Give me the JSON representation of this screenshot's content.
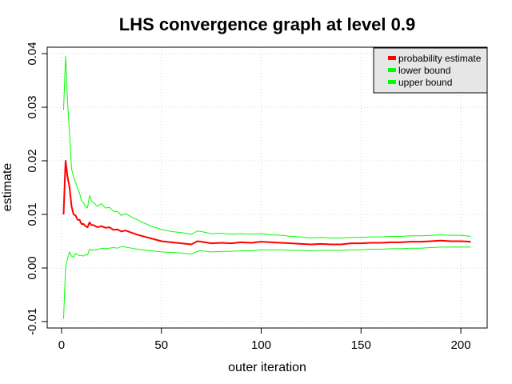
{
  "chart_data": {
    "type": "line",
    "title": "LHS convergence graph at level 0.9",
    "xlabel": "outer iteration",
    "ylabel": "estimate",
    "xlim": [
      -7.2,
      213.2
    ],
    "ylim": [
      -0.0112,
      0.0412
    ],
    "xticks": [
      0,
      50,
      100,
      150,
      200
    ],
    "yticks": [
      -0.01,
      0.0,
      0.01,
      0.02,
      0.03,
      0.04
    ],
    "xtick_labels": [
      "0",
      "50",
      "100",
      "150",
      "200"
    ],
    "ytick_labels": [
      "-0.01",
      "0.00",
      "0.01",
      "0.02",
      "0.03",
      "0.04"
    ],
    "grid": true,
    "legend_position": "top-right",
    "series": [
      {
        "name": "probability estimate",
        "color": "#ff0000",
        "x": [
          1,
          2,
          3,
          4,
          5,
          6,
          7,
          8,
          9,
          10,
          11,
          12,
          13,
          14,
          15,
          16,
          18,
          20,
          22,
          24,
          26,
          28,
          30,
          32,
          35,
          38,
          40,
          45,
          50,
          55,
          60,
          65,
          68,
          70,
          75,
          80,
          85,
          90,
          95,
          100,
          105,
          110,
          115,
          120,
          125,
          130,
          135,
          140,
          145,
          150,
          155,
          160,
          165,
          170,
          175,
          180,
          185,
          190,
          195,
          200,
          205
        ],
        "y": [
          0.01,
          0.02,
          0.017,
          0.015,
          0.0115,
          0.01,
          0.0098,
          0.009,
          0.009,
          0.0082,
          0.0082,
          0.0078,
          0.0076,
          0.0085,
          0.008,
          0.008,
          0.0076,
          0.0078,
          0.0075,
          0.0076,
          0.0071,
          0.0072,
          0.0068,
          0.007,
          0.0066,
          0.0062,
          0.006,
          0.0055,
          0.005,
          0.0048,
          0.0046,
          0.0044,
          0.005,
          0.0049,
          0.0046,
          0.0047,
          0.0046,
          0.0048,
          0.0047,
          0.0049,
          0.0048,
          0.0047,
          0.0046,
          0.0045,
          0.0044,
          0.0045,
          0.0044,
          0.0044,
          0.0046,
          0.0046,
          0.0047,
          0.0047,
          0.0048,
          0.0048,
          0.0049,
          0.0049,
          0.005,
          0.0051,
          0.005,
          0.005,
          0.0049
        ]
      },
      {
        "name": "lower bound",
        "color": "#00ff00",
        "x": [
          1,
          2,
          3,
          4,
          5,
          6,
          7,
          8,
          9,
          10,
          11,
          12,
          13,
          14,
          15,
          16,
          18,
          20,
          22,
          24,
          26,
          28,
          30,
          32,
          35,
          38,
          40,
          45,
          50,
          55,
          60,
          65,
          68,
          70,
          75,
          80,
          85,
          90,
          95,
          100,
          105,
          110,
          115,
          120,
          125,
          130,
          135,
          140,
          145,
          150,
          155,
          160,
          165,
          170,
          175,
          180,
          185,
          190,
          195,
          200,
          205
        ],
        "y": [
          -0.0095,
          0.0,
          0.0018,
          0.003,
          0.0022,
          0.002,
          0.0027,
          0.0025,
          0.0023,
          0.0024,
          0.0022,
          0.0025,
          0.0024,
          0.0035,
          0.0033,
          0.0034,
          0.0034,
          0.0037,
          0.0036,
          0.0037,
          0.0038,
          0.0037,
          0.004,
          0.0039,
          0.0037,
          0.0035,
          0.0034,
          0.0032,
          0.003,
          0.0029,
          0.0028,
          0.0026,
          0.0031,
          0.0032,
          0.003,
          0.0031,
          0.0031,
          0.0032,
          0.0032,
          0.0034,
          0.0034,
          0.0034,
          0.0033,
          0.0033,
          0.0032,
          0.0033,
          0.0033,
          0.0033,
          0.0034,
          0.0034,
          0.0035,
          0.0035,
          0.0036,
          0.0036,
          0.0037,
          0.0037,
          0.0038,
          0.0039,
          0.0039,
          0.0039,
          0.0039
        ]
      },
      {
        "name": "upper bound",
        "color": "#00ff00",
        "x": [
          1,
          2,
          3,
          4,
          5,
          6,
          7,
          8,
          9,
          10,
          11,
          12,
          13,
          14,
          15,
          16,
          18,
          20,
          22,
          24,
          26,
          28,
          30,
          32,
          35,
          38,
          40,
          45,
          50,
          55,
          60,
          65,
          68,
          70,
          75,
          80,
          85,
          90,
          95,
          100,
          105,
          110,
          115,
          120,
          125,
          130,
          135,
          140,
          145,
          150,
          155,
          160,
          165,
          170,
          175,
          180,
          185,
          190,
          195,
          200,
          205
        ],
        "y": [
          0.0295,
          0.0395,
          0.031,
          0.025,
          0.0185,
          0.017,
          0.016,
          0.015,
          0.014,
          0.0125,
          0.0122,
          0.0115,
          0.0112,
          0.0135,
          0.0125,
          0.0122,
          0.0115,
          0.012,
          0.0112,
          0.0113,
          0.0106,
          0.0105,
          0.0098,
          0.0102,
          0.0095,
          0.009,
          0.0086,
          0.0078,
          0.0072,
          0.0068,
          0.0066,
          0.0063,
          0.0069,
          0.0068,
          0.0064,
          0.0065,
          0.0063,
          0.0064,
          0.0063,
          0.0064,
          0.0062,
          0.0061,
          0.0059,
          0.0058,
          0.0056,
          0.0057,
          0.0056,
          0.0056,
          0.0057,
          0.0057,
          0.0058,
          0.0058,
          0.0059,
          0.0059,
          0.006,
          0.006,
          0.0061,
          0.0062,
          0.0061,
          0.0061,
          0.0059
        ]
      }
    ]
  }
}
